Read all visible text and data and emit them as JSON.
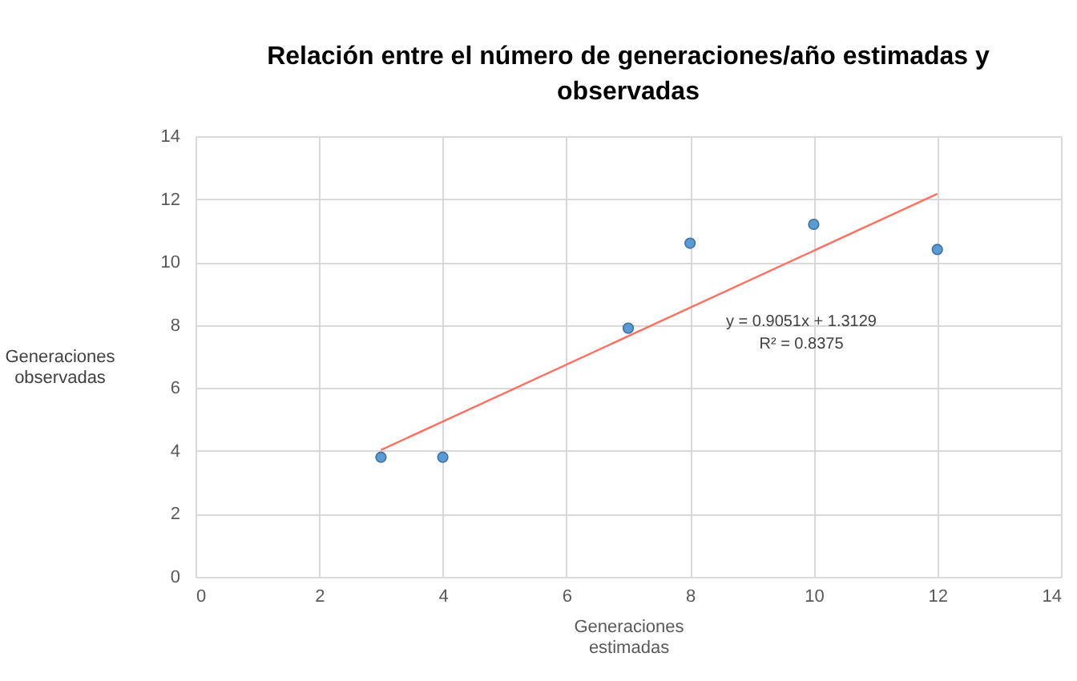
{
  "chart_data": {
    "type": "scatter",
    "title": "Relación entre el número de generaciones/año  estimadas y observadas",
    "xlabel": "Generaciones estimadas",
    "ylabel": "Generaciones observadas",
    "xlim": [
      0,
      14
    ],
    "xticks": [
      0,
      2,
      4,
      6,
      8,
      10,
      12,
      14
    ],
    "ylim": [
      0,
      14
    ],
    "yticks": [
      0,
      2,
      4,
      6,
      8,
      10,
      12,
      14
    ],
    "grid": true,
    "annotations": [
      "y = 0.9051x + 1.3129",
      "R² = 0.8375"
    ],
    "series": [
      {
        "type": "scatter",
        "marker": "circle",
        "color": "#5b9bd5",
        "x": [
          3,
          4,
          7,
          8,
          10,
          12
        ],
        "values": [
          3.8,
          3.8,
          7.9,
          10.6,
          11.2,
          10.4
        ]
      },
      {
        "type": "line",
        "marker": "none",
        "color": "#ff6f61",
        "x": [
          3,
          12
        ],
        "values": [
          4.03,
          12.17
        ]
      }
    ]
  }
}
